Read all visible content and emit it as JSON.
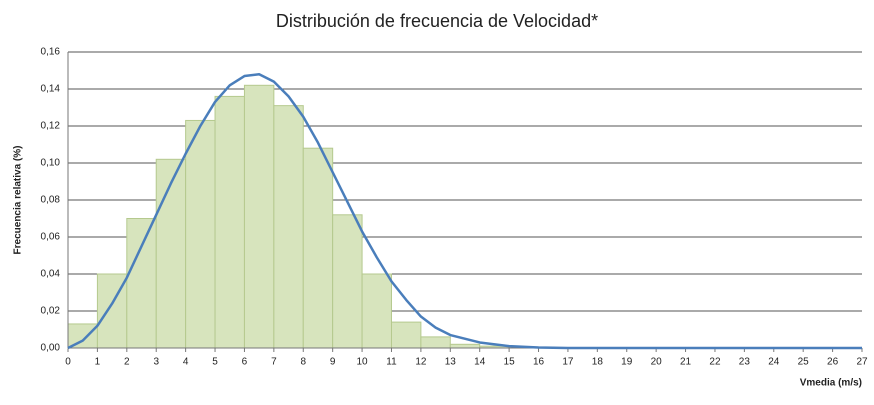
{
  "chart_data": {
    "type": "histogram",
    "title": "Distribución de frecuencia de Velocidad*",
    "xlabel": "Vmedia (m/s)",
    "ylabel": "Frecuencia relativa (%)",
    "bins": [
      0,
      1,
      2,
      3,
      4,
      5,
      6,
      7,
      8,
      9,
      10,
      11,
      12,
      13,
      14,
      15,
      16,
      17,
      18,
      19,
      20,
      21,
      22,
      23,
      24,
      25,
      26,
      27
    ],
    "values": [
      0.013,
      0.04,
      0.07,
      0.102,
      0.123,
      0.136,
      0.142,
      0.131,
      0.108,
      0.072,
      0.04,
      0.014,
      0.006,
      0.002,
      0.001,
      0,
      0,
      0,
      0,
      0,
      0,
      0,
      0,
      0,
      0,
      0,
      0
    ],
    "color": "#d7e4bd",
    "edge_color": "#b5c98e",
    "curve": {
      "color": "#4a7ebb",
      "x": [
        0,
        0.5,
        1,
        1.5,
        2,
        2.5,
        3,
        3.5,
        4,
        4.5,
        5,
        5.5,
        6,
        6.5,
        7,
        7.5,
        8,
        8.5,
        9,
        9.5,
        10,
        10.5,
        11,
        11.5,
        12,
        12.5,
        13,
        14,
        15,
        16,
        17,
        18,
        19,
        20,
        21,
        22,
        23,
        24,
        25,
        26,
        27
      ],
      "values": [
        0,
        0.004,
        0.012,
        0.024,
        0.038,
        0.055,
        0.072,
        0.089,
        0.105,
        0.12,
        0.133,
        0.142,
        0.147,
        0.148,
        0.144,
        0.136,
        0.125,
        0.111,
        0.095,
        0.079,
        0.063,
        0.049,
        0.036,
        0.026,
        0.017,
        0.011,
        0.007,
        0.003,
        0.001,
        0.0003,
        0,
        0,
        0,
        0,
        0,
        0,
        0,
        0,
        0,
        0,
        0
      ]
    },
    "xlim": [
      0,
      27
    ],
    "xticks": [
      0,
      1,
      2,
      3,
      4,
      5,
      6,
      7,
      8,
      9,
      10,
      11,
      12,
      13,
      14,
      15,
      16,
      17,
      18,
      19,
      20,
      21,
      22,
      23,
      24,
      25,
      26,
      27
    ],
    "ylim": [
      0,
      0.16
    ],
    "yticks": [
      {
        "value": 0,
        "label": "0,00"
      },
      {
        "value": 0.02,
        "label": "0,02"
      },
      {
        "value": 0.04,
        "label": "0,04"
      },
      {
        "value": 0.06,
        "label": "0,06"
      },
      {
        "value": 0.08,
        "label": "0,08"
      },
      {
        "value": 0.1,
        "label": "0,10"
      },
      {
        "value": 0.12,
        "label": "0,12"
      },
      {
        "value": 0.14,
        "label": "0,14"
      },
      {
        "value": 0.16,
        "label": "0,16"
      }
    ],
    "grid": true
  }
}
